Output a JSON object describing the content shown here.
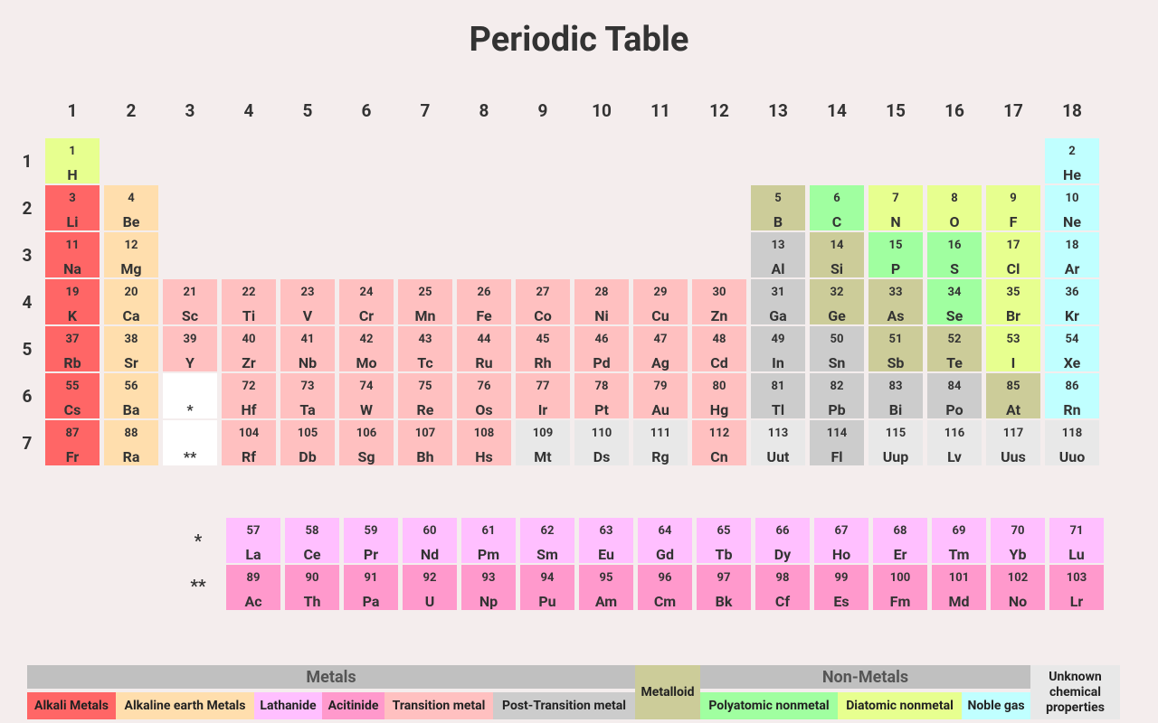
{
  "header": {
    "title": "Periodic Table"
  },
  "table": {
    "groups": [
      1,
      2,
      3,
      4,
      5,
      6,
      7,
      8,
      9,
      10,
      11,
      12,
      13,
      14,
      15,
      16,
      17,
      18
    ],
    "periods": [
      1,
      2,
      3,
      4,
      5,
      6,
      7
    ],
    "rows": [
      [
        {
          "number": 1,
          "symbol": "H",
          "color": "#e7ff8f"
        },
        null,
        null,
        null,
        null,
        null,
        null,
        null,
        null,
        null,
        null,
        null,
        null,
        null,
        null,
        null,
        null,
        {
          "number": 2,
          "symbol": "He",
          "color": "#c0ffff"
        }
      ],
      [
        {
          "number": 3,
          "symbol": "Li",
          "color": "#ff6666"
        },
        {
          "number": 4,
          "symbol": "Be",
          "color": "#ffdead"
        },
        null,
        null,
        null,
        null,
        null,
        null,
        null,
        null,
        null,
        null,
        {
          "number": 5,
          "symbol": "B",
          "color": "#cccc99"
        },
        {
          "number": 6,
          "symbol": "C",
          "color": "#a0ffa0"
        },
        {
          "number": 7,
          "symbol": "N",
          "color": "#e7ff8f"
        },
        {
          "number": 8,
          "symbol": "O",
          "color": "#e7ff8f"
        },
        {
          "number": 9,
          "symbol": "F",
          "color": "#e7ff8f"
        },
        {
          "number": 10,
          "symbol": "Ne",
          "color": "#c0ffff"
        }
      ],
      [
        {
          "number": 11,
          "symbol": "Na",
          "color": "#ff6666"
        },
        {
          "number": 12,
          "symbol": "Mg",
          "color": "#ffdead"
        },
        null,
        null,
        null,
        null,
        null,
        null,
        null,
        null,
        null,
        null,
        {
          "number": 13,
          "symbol": "Al",
          "color": "#cccccc"
        },
        {
          "number": 14,
          "symbol": "Si",
          "color": "#cccc99"
        },
        {
          "number": 15,
          "symbol": "P",
          "color": "#a0ffa0"
        },
        {
          "number": 16,
          "symbol": "S",
          "color": "#a0ffa0"
        },
        {
          "number": 17,
          "symbol": "Cl",
          "color": "#e7ff8f"
        },
        {
          "number": 18,
          "symbol": "Ar",
          "color": "#c0ffff"
        }
      ],
      [
        {
          "number": 19,
          "symbol": "K",
          "color": "#ff6666"
        },
        {
          "number": 20,
          "symbol": "Ca",
          "color": "#ffdead"
        },
        {
          "number": 21,
          "symbol": "Sc",
          "color": "#ffc0c0"
        },
        {
          "number": 22,
          "symbol": "Ti",
          "color": "#ffc0c0"
        },
        {
          "number": 23,
          "symbol": "V",
          "color": "#ffc0c0"
        },
        {
          "number": 24,
          "symbol": "Cr",
          "color": "#ffc0c0"
        },
        {
          "number": 25,
          "symbol": "Mn",
          "color": "#ffc0c0"
        },
        {
          "number": 26,
          "symbol": "Fe",
          "color": "#ffc0c0"
        },
        {
          "number": 27,
          "symbol": "Co",
          "color": "#ffc0c0"
        },
        {
          "number": 28,
          "symbol": "Ni",
          "color": "#ffc0c0"
        },
        {
          "number": 29,
          "symbol": "Cu",
          "color": "#ffc0c0"
        },
        {
          "number": 30,
          "symbol": "Zn",
          "color": "#ffc0c0"
        },
        {
          "number": 31,
          "symbol": "Ga",
          "color": "#cccccc"
        },
        {
          "number": 32,
          "symbol": "Ge",
          "color": "#cccc99"
        },
        {
          "number": 33,
          "symbol": "As",
          "color": "#cccc99"
        },
        {
          "number": 34,
          "symbol": "Se",
          "color": "#a0ffa0"
        },
        {
          "number": 35,
          "symbol": "Br",
          "color": "#e7ff8f"
        },
        {
          "number": 36,
          "symbol": "Kr",
          "color": "#c0ffff"
        }
      ],
      [
        {
          "number": 37,
          "symbol": "Rb",
          "color": "#ff6666"
        },
        {
          "number": 38,
          "symbol": "Sr",
          "color": "#ffdead"
        },
        {
          "number": 39,
          "symbol": "Y",
          "color": "#ffc0c0"
        },
        {
          "number": 40,
          "symbol": "Zr",
          "color": "#ffc0c0"
        },
        {
          "number": 41,
          "symbol": "Nb",
          "color": "#ffc0c0"
        },
        {
          "number": 42,
          "symbol": "Mo",
          "color": "#ffc0c0"
        },
        {
          "number": 43,
          "symbol": "Tc",
          "color": "#ffc0c0"
        },
        {
          "number": 44,
          "symbol": "Ru",
          "color": "#ffc0c0"
        },
        {
          "number": 45,
          "symbol": "Rh",
          "color": "#ffc0c0"
        },
        {
          "number": 46,
          "symbol": "Pd",
          "color": "#ffc0c0"
        },
        {
          "number": 47,
          "symbol": "Ag",
          "color": "#ffc0c0"
        },
        {
          "number": 48,
          "symbol": "Cd",
          "color": "#ffc0c0"
        },
        {
          "number": 49,
          "symbol": "In",
          "color": "#cccccc"
        },
        {
          "number": 50,
          "symbol": "Sn",
          "color": "#cccccc"
        },
        {
          "number": 51,
          "symbol": "Sb",
          "color": "#cccc99"
        },
        {
          "number": 52,
          "symbol": "Te",
          "color": "#cccc99"
        },
        {
          "number": 53,
          "symbol": "I",
          "color": "#e7ff8f"
        },
        {
          "number": 54,
          "symbol": "Xe",
          "color": "#c0ffff"
        }
      ],
      [
        {
          "number": 55,
          "symbol": "Cs",
          "color": "#ff6666"
        },
        {
          "number": 56,
          "symbol": "Ba",
          "color": "#ffdead"
        },
        {
          "symbol": "*",
          "color": "#ffffff"
        },
        {
          "number": 72,
          "symbol": "Hf",
          "color": "#ffc0c0"
        },
        {
          "number": 73,
          "symbol": "Ta",
          "color": "#ffc0c0"
        },
        {
          "number": 74,
          "symbol": "W",
          "color": "#ffc0c0"
        },
        {
          "number": 75,
          "symbol": "Re",
          "color": "#ffc0c0"
        },
        {
          "number": 76,
          "symbol": "Os",
          "color": "#ffc0c0"
        },
        {
          "number": 77,
          "symbol": "Ir",
          "color": "#ffc0c0"
        },
        {
          "number": 78,
          "symbol": "Pt",
          "color": "#ffc0c0"
        },
        {
          "number": 79,
          "symbol": "Au",
          "color": "#ffc0c0"
        },
        {
          "number": 80,
          "symbol": "Hg",
          "color": "#ffc0c0"
        },
        {
          "number": 81,
          "symbol": "Tl",
          "color": "#cccccc"
        },
        {
          "number": 82,
          "symbol": "Pb",
          "color": "#cccccc"
        },
        {
          "number": 83,
          "symbol": "Bi",
          "color": "#cccccc"
        },
        {
          "number": 84,
          "symbol": "Po",
          "color": "#cccccc"
        },
        {
          "number": 85,
          "symbol": "At",
          "color": "#cccc99"
        },
        {
          "number": 86,
          "symbol": "Rn",
          "color": "#c0ffff"
        }
      ],
      [
        {
          "number": 87,
          "symbol": "Fr",
          "color": "#ff6666"
        },
        {
          "number": 88,
          "symbol": "Ra",
          "color": "#ffdead"
        },
        {
          "symbol": "**",
          "color": "#ffffff"
        },
        {
          "number": 104,
          "symbol": "Rf",
          "color": "#ffc0c0"
        },
        {
          "number": 105,
          "symbol": "Db",
          "color": "#ffc0c0"
        },
        {
          "number": 106,
          "symbol": "Sg",
          "color": "#ffc0c0"
        },
        {
          "number": 107,
          "symbol": "Bh",
          "color": "#ffc0c0"
        },
        {
          "number": 108,
          "symbol": "Hs",
          "color": "#ffc0c0"
        },
        {
          "number": 109,
          "symbol": "Mt",
          "color": "#e8e8e8"
        },
        {
          "number": 110,
          "symbol": "Ds",
          "color": "#e8e8e8"
        },
        {
          "number": 111,
          "symbol": "Rg",
          "color": "#e8e8e8"
        },
        {
          "number": 112,
          "symbol": "Cn",
          "color": "#ffc0c0"
        },
        {
          "number": 113,
          "symbol": "Uut",
          "color": "#e8e8e8"
        },
        {
          "number": 114,
          "symbol": "Fl",
          "color": "#cccccc"
        },
        {
          "number": 115,
          "symbol": "Uup",
          "color": "#e8e8e8"
        },
        {
          "number": 116,
          "symbol": "Lv",
          "color": "#e8e8e8"
        },
        {
          "number": 117,
          "symbol": "Uus",
          "color": "#e8e8e8"
        },
        {
          "number": 118,
          "symbol": "Uuo",
          "color": "#e8e8e8"
        }
      ]
    ]
  },
  "f_block": [
    {
      "marker": "*",
      "color": "#ffbfff",
      "cells": [
        {
          "number": 57,
          "symbol": "La"
        },
        {
          "number": 58,
          "symbol": "Ce"
        },
        {
          "number": 59,
          "symbol": "Pr"
        },
        {
          "number": 60,
          "symbol": "Nd"
        },
        {
          "number": 61,
          "symbol": "Pm"
        },
        {
          "number": 62,
          "symbol": "Sm"
        },
        {
          "number": 63,
          "symbol": "Eu"
        },
        {
          "number": 64,
          "symbol": "Gd"
        },
        {
          "number": 65,
          "symbol": "Tb"
        },
        {
          "number": 66,
          "symbol": "Dy"
        },
        {
          "number": 67,
          "symbol": "Ho"
        },
        {
          "number": 68,
          "symbol": "Er"
        },
        {
          "number": 69,
          "symbol": "Tm"
        },
        {
          "number": 70,
          "symbol": "Yb"
        },
        {
          "number": 71,
          "symbol": "Lu"
        }
      ]
    },
    {
      "marker": "**",
      "color": "#ff99cc",
      "cells": [
        {
          "number": 89,
          "symbol": "Ac"
        },
        {
          "number": 90,
          "symbol": "Th"
        },
        {
          "number": 91,
          "symbol": "Pa"
        },
        {
          "number": 92,
          "symbol": "U"
        },
        {
          "number": 93,
          "symbol": "Np"
        },
        {
          "number": 94,
          "symbol": "Pu"
        },
        {
          "number": 95,
          "symbol": "Am"
        },
        {
          "number": 96,
          "symbol": "Cm"
        },
        {
          "number": 97,
          "symbol": "Bk"
        },
        {
          "number": 98,
          "symbol": "Cf"
        },
        {
          "number": 99,
          "symbol": "Es"
        },
        {
          "number": 100,
          "symbol": "Fm"
        },
        {
          "number": 101,
          "symbol": "Md"
        },
        {
          "number": 102,
          "symbol": "No"
        },
        {
          "number": 103,
          "symbol": "Lr"
        }
      ]
    }
  ],
  "legend": [
    {
      "label": "Metals",
      "color": "#c0c0c0",
      "items": [
        {
          "label": "Alkali Metals",
          "color": "#ff6666"
        },
        {
          "label": "Alkaline earth Metals",
          "color": "#ffdead"
        },
        {
          "label": "Lathanide",
          "color": "#ffbfff"
        },
        {
          "label": "Acitinide",
          "color": "#ff99cc"
        },
        {
          "label": "Transition metal",
          "color": "#ffc0c0"
        },
        {
          "label": "Post-Transition metal",
          "color": "#cccccc"
        }
      ]
    },
    {
      "label": "Metalloid",
      "color": "#cccc99"
    },
    {
      "label": "Non-Metals",
      "color": "#c0c0c0",
      "items": [
        {
          "label": "Polyatomic nonmetal",
          "color": "#a0ffa0"
        },
        {
          "label": "Diatomic nonmetal",
          "color": "#e7ff8f"
        },
        {
          "label": "Noble gas",
          "color": "#c0ffff"
        }
      ]
    },
    {
      "label": "Unknown chemical properties",
      "color": "#e8e8e8"
    }
  ]
}
